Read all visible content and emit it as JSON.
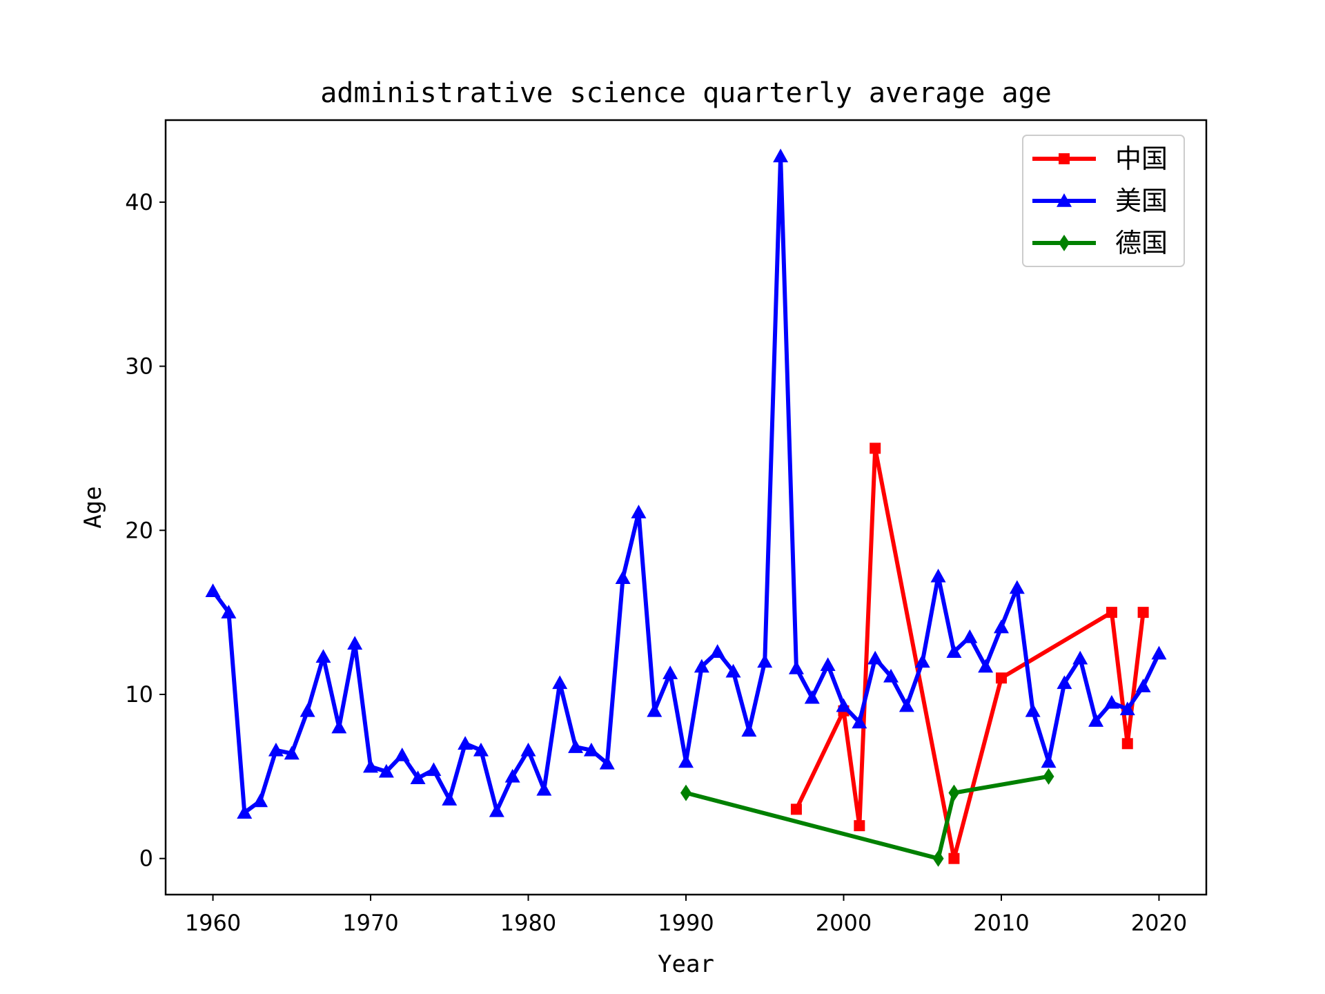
{
  "chart_data": {
    "type": "line",
    "title": "administrative science quarterly average age",
    "xlabel": "Year",
    "ylabel": "Age",
    "xlim": [
      1957,
      2023
    ],
    "ylim": [
      -2.2,
      45
    ],
    "xticks": [
      1960,
      1970,
      1980,
      1990,
      2000,
      2010,
      2020
    ],
    "yticks": [
      0,
      10,
      20,
      30,
      40
    ],
    "grid": false,
    "legend_position": "top-right",
    "series": [
      {
        "name": "中国",
        "color": "#ff0000",
        "marker": "square",
        "points": [
          [
            1997,
            3
          ],
          [
            2000,
            9
          ],
          [
            2001,
            2
          ],
          [
            2002,
            25
          ],
          [
            2007,
            0
          ],
          [
            2010,
            11
          ],
          [
            2017,
            15
          ],
          [
            2018,
            7
          ],
          [
            2019,
            15
          ]
        ]
      },
      {
        "name": "美国",
        "color": "#0000ff",
        "marker": "triangle",
        "points": [
          [
            1960,
            16.3
          ],
          [
            1961,
            15.0
          ],
          [
            1962,
            2.8
          ],
          [
            1963,
            3.5
          ],
          [
            1964,
            6.6
          ],
          [
            1965,
            6.4
          ],
          [
            1966,
            9.0
          ],
          [
            1967,
            12.3
          ],
          [
            1968,
            8.0
          ],
          [
            1969,
            13.1
          ],
          [
            1970,
            5.6
          ],
          [
            1971,
            5.3
          ],
          [
            1972,
            6.3
          ],
          [
            1973,
            4.9
          ],
          [
            1974,
            5.4
          ],
          [
            1975,
            3.6
          ],
          [
            1976,
            7.0
          ],
          [
            1977,
            6.6
          ],
          [
            1978,
            2.9
          ],
          [
            1979,
            5.0
          ],
          [
            1980,
            6.6
          ],
          [
            1981,
            4.2
          ],
          [
            1982,
            10.7
          ],
          [
            1983,
            6.8
          ],
          [
            1984,
            6.6
          ],
          [
            1985,
            5.8
          ],
          [
            1986,
            17.1
          ],
          [
            1987,
            21.1
          ],
          [
            1988,
            9.0
          ],
          [
            1989,
            11.3
          ],
          [
            1990,
            5.9
          ],
          [
            1991,
            11.7
          ],
          [
            1992,
            12.6
          ],
          [
            1993,
            11.4
          ],
          [
            1994,
            7.8
          ],
          [
            1995,
            12.0
          ],
          [
            1996,
            42.8
          ],
          [
            1997,
            11.6
          ],
          [
            1998,
            9.8
          ],
          [
            1999,
            11.8
          ],
          [
            2000,
            9.3
          ],
          [
            2001,
            8.3
          ],
          [
            2002,
            12.2
          ],
          [
            2003,
            11.1
          ],
          [
            2004,
            9.3
          ],
          [
            2005,
            12.0
          ],
          [
            2006,
            17.2
          ],
          [
            2007,
            12.6
          ],
          [
            2008,
            13.5
          ],
          [
            2009,
            11.7
          ],
          [
            2010,
            14.1
          ],
          [
            2011,
            16.5
          ],
          [
            2012,
            9.0
          ],
          [
            2013,
            5.9
          ],
          [
            2014,
            10.7
          ],
          [
            2015,
            12.2
          ],
          [
            2016,
            8.4
          ],
          [
            2017,
            9.5
          ],
          [
            2018,
            9.1
          ],
          [
            2019,
            10.5
          ],
          [
            2020,
            12.5
          ]
        ]
      },
      {
        "name": "德国",
        "color": "#008000",
        "marker": "diamond",
        "points": [
          [
            1990,
            4
          ],
          [
            2006,
            0
          ],
          [
            2007,
            4
          ],
          [
            2013,
            5
          ]
        ]
      }
    ]
  }
}
